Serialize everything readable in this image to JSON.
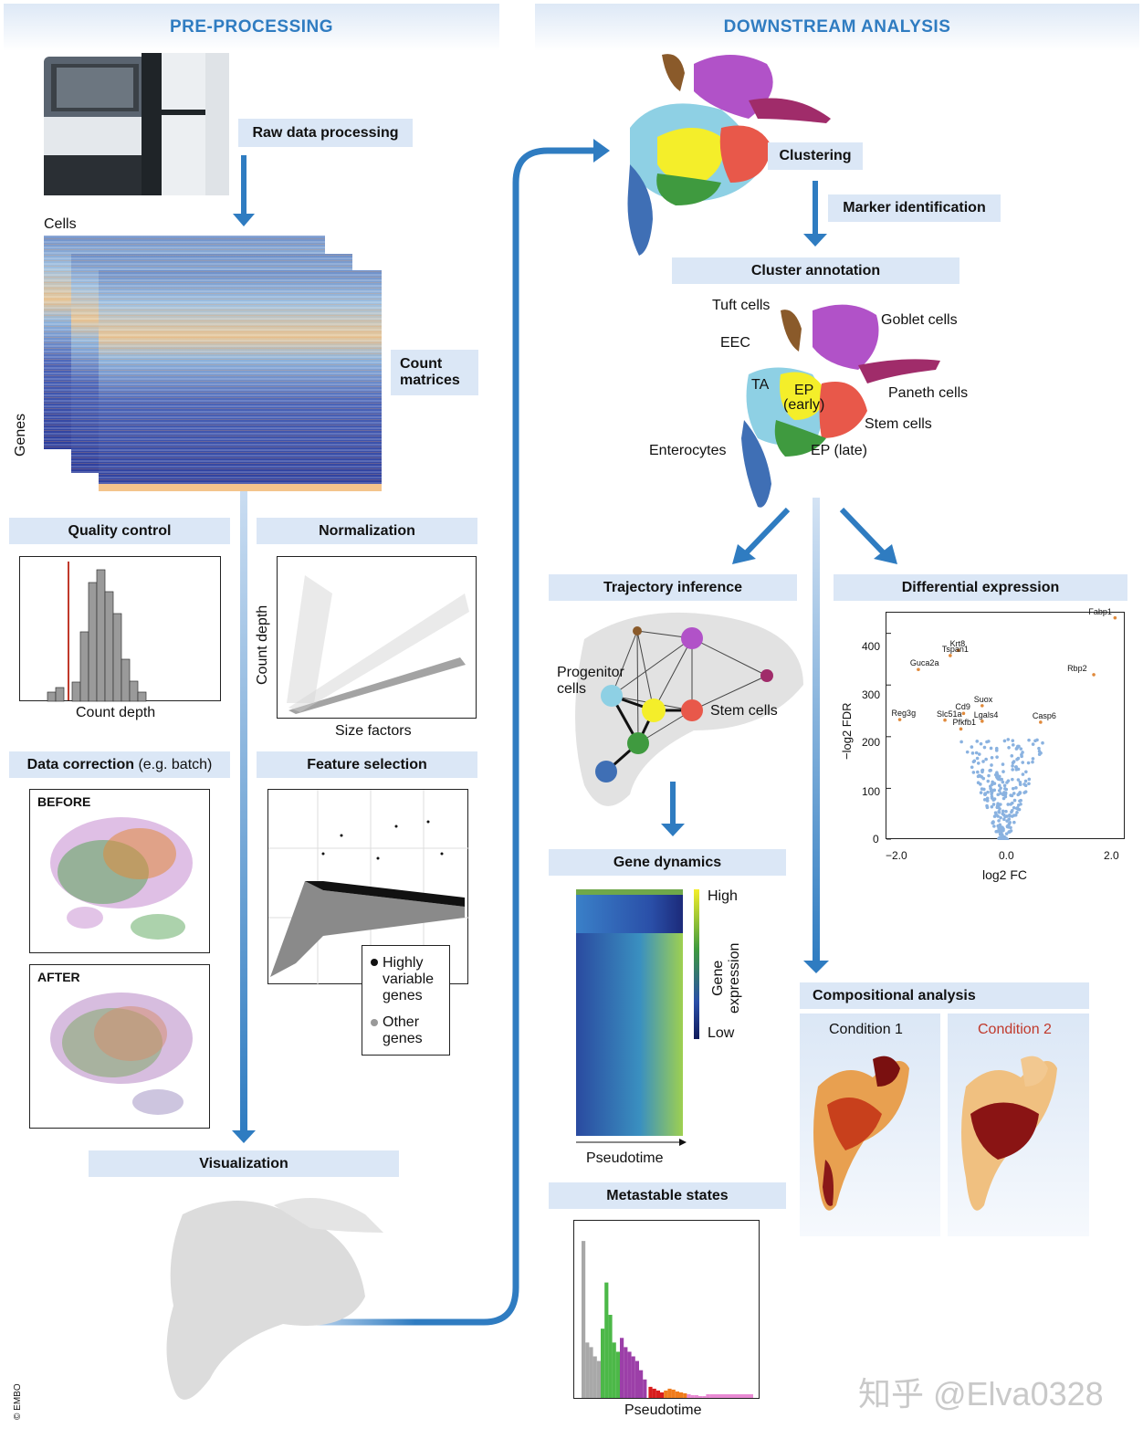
{
  "headers": {
    "left": "PRE-PROCESSING",
    "right": "DOWNSTREAM ANALYSIS"
  },
  "pre": {
    "raw": "Raw data processing",
    "cells": "Cells",
    "genes": "Genes",
    "count_line1": "Count",
    "count_line2": "matrices",
    "qc": "Quality control",
    "qc_x": "Count depth",
    "norm": "Normalization",
    "norm_x": "Size factors",
    "norm_y": "Count depth",
    "dc_bold": "Data correction",
    "dc_rest": " (e.g. batch)",
    "before": "BEFORE",
    "after": "AFTER",
    "fs": "Feature selection",
    "hv1": "Highly",
    "hv2": "variable",
    "hv3": "genes",
    "og1": "Other",
    "og2": "genes",
    "vis": "Visualization"
  },
  "down": {
    "clustering": "Clustering",
    "marker": "Marker identification",
    "annotation": "Cluster annotation",
    "cell_types": {
      "tuft": "Tuft cells",
      "goblet": "Goblet cells",
      "eec": "EEC",
      "ta": "TA",
      "ep_early_1": "EP",
      "ep_early_2": "(early)",
      "paneth": "Paneth cells",
      "stem": "Stem cells",
      "enterocytes": "Enterocytes",
      "ep_late": "EP (late)"
    },
    "traj": "Trajectory inference",
    "prog1": "Progenitor",
    "prog2": "cells",
    "stem": "Stem cells",
    "gene_dyn": "Gene dynamics",
    "high": "High",
    "low": "Low",
    "ge1": "Gene",
    "ge2": "expression",
    "pseudotime": "Pseudotime",
    "meta": "Metastable states",
    "diff": "Differential expression",
    "comp": "Compositional analysis",
    "cond1": "Condition 1",
    "cond2": "Condition 2",
    "cond2_color": "#c0392b"
  },
  "chart_data": [
    {
      "type": "scatter",
      "title": "",
      "xlabel": "log2 FC",
      "ylabel": "−log2 FDR",
      "xticks": [
        "−2.0",
        "0.0",
        "2.0"
      ],
      "yticks": [
        "0",
        "100",
        "200",
        "300",
        "400"
      ],
      "xlim": [
        -2.2,
        2.3
      ],
      "ylim": [
        0,
        440
      ],
      "labeled_points": [
        {
          "label": "Fabp1",
          "x": 2.1,
          "y": 430
        },
        {
          "label": "Krt8",
          "x": -0.85,
          "y": 367
        },
        {
          "label": "Tspan1",
          "x": -1.0,
          "y": 357
        },
        {
          "label": "Guca2a",
          "x": -1.6,
          "y": 330
        },
        {
          "label": "Rbp2",
          "x": 1.7,
          "y": 320
        },
        {
          "label": "Suox",
          "x": -0.4,
          "y": 260
        },
        {
          "label": "Cd9",
          "x": -0.75,
          "y": 245
        },
        {
          "label": "Reg3g",
          "x": -1.95,
          "y": 233
        },
        {
          "label": "Slc51a",
          "x": -1.1,
          "y": 232
        },
        {
          "label": "Lgals4",
          "x": -0.4,
          "y": 230
        },
        {
          "label": "Casp6",
          "x": 0.7,
          "y": 228
        },
        {
          "label": "Pfkfb1",
          "x": -0.8,
          "y": 215
        }
      ],
      "grid": false
    },
    {
      "type": "bar",
      "title": "",
      "xlabel": "Pseudotime",
      "ylabel": "",
      "series": [
        {
          "values": [
            170,
            60,
            55,
            45,
            40
          ]
        },
        {
          "values": [
            75,
            125,
            90,
            60,
            50
          ]
        },
        {
          "values": [
            65,
            55,
            50,
            45,
            40,
            30,
            20
          ]
        },
        {
          "values": [
            12,
            10,
            8,
            6
          ]
        },
        {
          "values": [
            8,
            10,
            9,
            7,
            6,
            5
          ]
        },
        {
          "values": [
            4,
            3,
            3,
            2,
            2,
            4
          ]
        }
      ]
    }
  ]
}
